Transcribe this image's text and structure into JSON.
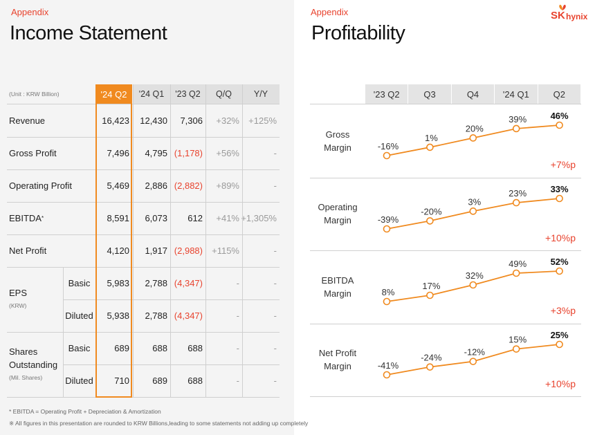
{
  "left": {
    "appendix": "Appendix",
    "title": "Income Statement",
    "unit": "(Unit : KRW Billion)",
    "columns": [
      "'24 Q2",
      "'24 Q1",
      "'23 Q2",
      "Q/Q",
      "Y/Y"
    ],
    "rows": [
      {
        "label": "Revenue",
        "values": [
          "16,423",
          "12,430",
          "7,306",
          "+32%",
          "+125%"
        ]
      },
      {
        "label": "Gross Profit",
        "values": [
          "7,496",
          "4,795",
          "(1,178)",
          "+56%",
          "-"
        ]
      },
      {
        "label": "Operating Profit",
        "values": [
          "5,469",
          "2,886",
          "(2,882)",
          "+89%",
          "-"
        ]
      },
      {
        "label": "EBITDA",
        "sup": "*",
        "values": [
          "8,591",
          "6,073",
          "612",
          "+41%",
          "+1,305%"
        ]
      },
      {
        "label": "Net Profit",
        "values": [
          "4,120",
          "1,917",
          "(2,988)",
          "+115%",
          "-"
        ]
      }
    ],
    "eps": {
      "label": "EPS",
      "sublabel": "(KRW)",
      "rows": [
        {
          "label": "Basic",
          "values": [
            "5,983",
            "2,788",
            "(4,347)",
            "-",
            "-"
          ]
        },
        {
          "label": "Diluted",
          "values": [
            "5,938",
            "2,788",
            "(4,347)",
            "-",
            "-"
          ]
        }
      ]
    },
    "shares": {
      "label_1": "Shares",
      "label_2": "Outstanding",
      "sublabel": "(Mil. Shares)",
      "rows": [
        {
          "label": "Basic",
          "values": [
            "689",
            "688",
            "688",
            "-",
            "-"
          ]
        },
        {
          "label": "Diluted",
          "values": [
            "710",
            "689",
            "688",
            "-",
            "-"
          ]
        }
      ]
    },
    "footnote_1": "* EBITDA = Operating Profit + Depreciation & Amortization",
    "footnote_2": "※ All figures in this presentation are rounded to KRW Billions,leading to some statements not adding up completely"
  },
  "right": {
    "appendix": "Appendix",
    "title": "Profitability",
    "logo_sk": "SK",
    "logo_hynix": "hynix",
    "columns": [
      "'23 Q2",
      "Q3",
      "Q4",
      "'24 Q1",
      "Q2"
    ],
    "accent": "#f08a1f",
    "negative_color": "#e8432e"
  },
  "chart_data": [
    {
      "type": "line",
      "name": "Gross Margin",
      "label_1": "Gross",
      "label_2": "Margin",
      "categories": [
        "'23 Q2",
        "Q3",
        "Q4",
        "'24 Q1",
        "Q2"
      ],
      "values": [
        -16,
        1,
        20,
        39,
        46
      ],
      "labels": [
        "-16%",
        "1%",
        "20%",
        "39%",
        "46%"
      ],
      "delta": "+7%p"
    },
    {
      "type": "line",
      "name": "Operating Margin",
      "label_1": "Operating",
      "label_2": "Margin",
      "categories": [
        "'23 Q2",
        "Q3",
        "Q4",
        "'24 Q1",
        "Q2"
      ],
      "values": [
        -39,
        -20,
        3,
        23,
        33
      ],
      "labels": [
        "-39%",
        "-20%",
        "3%",
        "23%",
        "33%"
      ],
      "delta": "+10%p"
    },
    {
      "type": "line",
      "name": "EBITDA Margin",
      "label_1": "EBITDA",
      "label_2": "Margin",
      "categories": [
        "'23 Q2",
        "Q3",
        "Q4",
        "'24 Q1",
        "Q2"
      ],
      "values": [
        8,
        17,
        32,
        49,
        52
      ],
      "labels": [
        "8%",
        "17%",
        "32%",
        "49%",
        "52%"
      ],
      "delta": "+3%p"
    },
    {
      "type": "line",
      "name": "Net Profit Margin",
      "label_1": "Net Profit",
      "label_2": "Margin",
      "categories": [
        "'23 Q2",
        "Q3",
        "Q4",
        "'24 Q1",
        "Q2"
      ],
      "values": [
        -41,
        -24,
        -12,
        15,
        25
      ],
      "labels": [
        "-41%",
        "-24%",
        "-12%",
        "15%",
        "25%"
      ],
      "delta": "+10%p"
    }
  ]
}
